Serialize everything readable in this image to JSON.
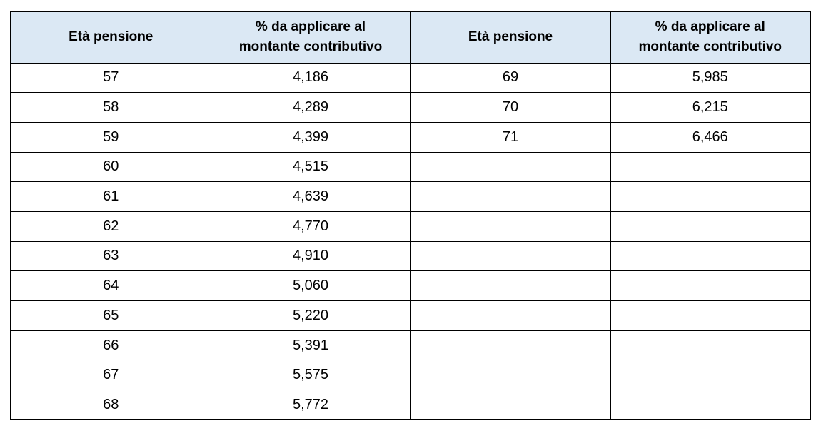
{
  "table": {
    "name": "pension-transformation-coefficients",
    "header_bg": "#dbe8f4",
    "border_color": "#000000",
    "columns": [
      "Età pensione",
      "% da applicare al montante contributivo",
      "Età pensione",
      "% da applicare al montante contributivo"
    ],
    "rows": [
      [
        "57",
        "4,186",
        "69",
        "5,985"
      ],
      [
        "58",
        "4,289",
        "70",
        "6,215"
      ],
      [
        "59",
        "4,399",
        "71",
        "6,466"
      ],
      [
        "60",
        "4,515",
        "",
        ""
      ],
      [
        "61",
        "4,639",
        "",
        ""
      ],
      [
        "62",
        "4,770",
        "",
        ""
      ],
      [
        "63",
        "4,910",
        "",
        ""
      ],
      [
        "64",
        "5,060",
        "",
        ""
      ],
      [
        "65",
        "5,220",
        "",
        ""
      ],
      [
        "66",
        "5,391",
        "",
        ""
      ],
      [
        "67",
        "5,575",
        "",
        ""
      ],
      [
        "68",
        "5,772",
        "",
        ""
      ]
    ]
  }
}
